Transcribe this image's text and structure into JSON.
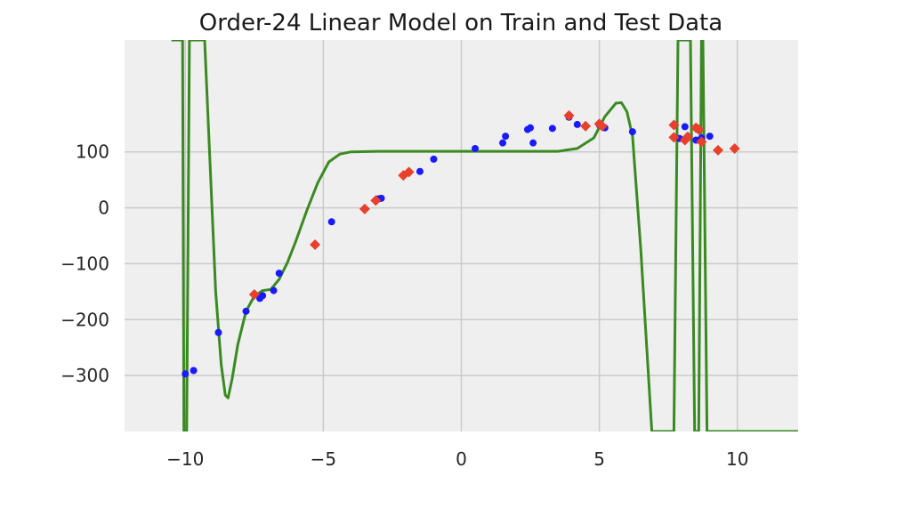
{
  "chart_data": {
    "type": "scatter",
    "title": "Order-24 Linear Model on Train and Test Data",
    "xlabel": "",
    "ylabel": "",
    "xlim": [
      -12.2,
      12.2
    ],
    "ylim": [
      -400,
      300
    ],
    "xticks": [
      -10,
      -5,
      0,
      5,
      10
    ],
    "yticks": [
      100,
      0,
      -100,
      -200,
      -300
    ],
    "xtick_labels": [
      "−10",
      "−5",
      "0",
      "5",
      "10"
    ],
    "ytick_labels": [
      "100",
      "0",
      "−100",
      "−200",
      "−300"
    ],
    "grid": true,
    "legend": "none",
    "colors": {
      "background": "#efefef",
      "grid": "#cbcbcb",
      "train": "#1a1aff",
      "test": "#e8402a",
      "model": "#3a8a22"
    },
    "series": [
      {
        "marker": "circle",
        "points": [
          [
            -10.0,
            -297
          ],
          [
            -9.7,
            -291
          ],
          [
            -8.8,
            -223
          ],
          [
            -7.8,
            -185
          ],
          [
            -7.3,
            -162
          ],
          [
            -7.2,
            -157
          ],
          [
            -6.8,
            -148
          ],
          [
            -6.6,
            -117
          ],
          [
            -4.7,
            -25
          ],
          [
            -3.0,
            16
          ],
          [
            -2.9,
            17
          ],
          [
            -1.5,
            65
          ],
          [
            -1.0,
            87
          ],
          [
            0.5,
            106
          ],
          [
            1.5,
            116
          ],
          [
            1.6,
            128
          ],
          [
            2.4,
            140
          ],
          [
            2.5,
            143
          ],
          [
            2.6,
            116
          ],
          [
            3.3,
            142
          ],
          [
            3.9,
            162
          ],
          [
            4.2,
            149
          ],
          [
            5.0,
            148
          ],
          [
            5.2,
            143
          ],
          [
            6.2,
            136
          ],
          [
            7.9,
            124
          ],
          [
            8.1,
            145
          ],
          [
            8.5,
            121
          ],
          [
            8.7,
            125
          ],
          [
            9.0,
            128
          ]
        ]
      },
      {
        "marker": "diamond",
        "points": [
          [
            -7.5,
            -155
          ],
          [
            -5.3,
            -66
          ],
          [
            -3.5,
            -2
          ],
          [
            -3.1,
            13
          ],
          [
            -2.1,
            58
          ],
          [
            -1.9,
            64
          ],
          [
            3.9,
            165
          ],
          [
            4.5,
            146
          ],
          [
            5.0,
            150
          ],
          [
            5.1,
            146
          ],
          [
            7.7,
            148
          ],
          [
            7.7,
            126
          ],
          [
            8.1,
            121
          ],
          [
            8.2,
            127
          ],
          [
            8.5,
            143
          ],
          [
            8.6,
            140
          ],
          [
            8.7,
            118
          ],
          [
            9.3,
            103
          ],
          [
            9.9,
            106
          ]
        ]
      },
      {
        "type": "line",
        "points": [
          [
            -10.5,
            300
          ],
          [
            -10.1,
            300
          ],
          [
            -10.05,
            -400
          ],
          [
            -9.95,
            -400
          ],
          [
            -9.85,
            300
          ],
          [
            -9.3,
            300
          ],
          [
            -8.9,
            -150
          ],
          [
            -8.7,
            -280
          ],
          [
            -8.55,
            -335
          ],
          [
            -8.45,
            -340
          ],
          [
            -8.3,
            -305
          ],
          [
            -8.1,
            -245
          ],
          [
            -7.8,
            -185
          ],
          [
            -7.5,
            -158
          ],
          [
            -7.2,
            -148
          ],
          [
            -6.9,
            -146
          ],
          [
            -6.6,
            -128
          ],
          [
            -6.3,
            -98
          ],
          [
            -6.0,
            -60
          ],
          [
            -5.6,
            -5
          ],
          [
            -5.2,
            45
          ],
          [
            -4.8,
            82
          ],
          [
            -4.4,
            96
          ],
          [
            -4.0,
            100
          ],
          [
            -3.0,
            101
          ],
          [
            -1.0,
            101
          ],
          [
            2.0,
            101
          ],
          [
            3.5,
            101
          ],
          [
            4.2,
            106
          ],
          [
            4.8,
            125
          ],
          [
            5.2,
            163
          ],
          [
            5.6,
            187
          ],
          [
            5.8,
            188
          ],
          [
            6.0,
            172
          ],
          [
            6.2,
            128
          ],
          [
            6.5,
            -75
          ],
          [
            6.9,
            -400
          ],
          [
            7.7,
            -400
          ],
          [
            7.85,
            300
          ],
          [
            8.0,
            300
          ],
          [
            8.3,
            300
          ],
          [
            8.45,
            -400
          ],
          [
            8.6,
            -400
          ],
          [
            8.7,
            300
          ],
          [
            8.75,
            300
          ],
          [
            8.9,
            -400
          ],
          [
            12.2,
            -400
          ]
        ]
      }
    ]
  }
}
